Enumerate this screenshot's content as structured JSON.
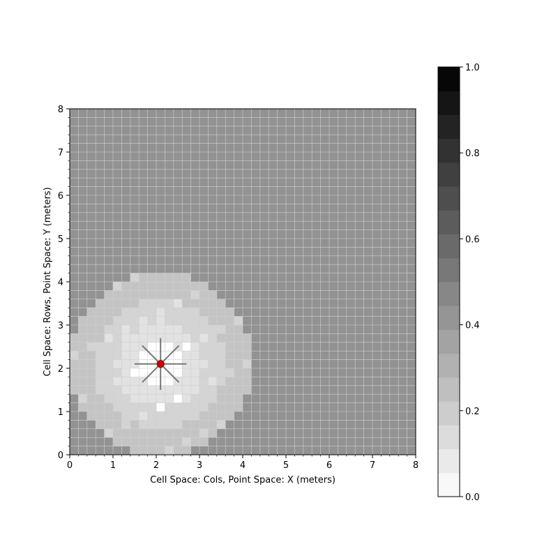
{
  "chart_data": {
    "type": "heatmap",
    "xlabel": "Cell Space: Cols, Point Space: X (meters)",
    "ylabel": "Cell Space: Rows, Point Space: Y (meters)",
    "xlim": [
      0,
      8
    ],
    "ylim": [
      0,
      8
    ],
    "x_ticks": [
      "0",
      "1",
      "2",
      "3",
      "4",
      "5",
      "6",
      "7",
      "8"
    ],
    "y_ticks": [
      "0",
      "1",
      "2",
      "3",
      "4",
      "5",
      "6",
      "7",
      "8"
    ],
    "grid_size": 40,
    "cell_size_m": 0.2,
    "grid": true,
    "colormap": "gray_r",
    "background_value": 0.5,
    "center_point": {
      "x": 2.1,
      "y": 2.1,
      "color": "#cc0000"
    },
    "value_bands": [
      {
        "max_radius_m": 0.55,
        "value": 0.0
      },
      {
        "max_radius_m": 1.0,
        "value": 0.1
      },
      {
        "max_radius_m": 1.5,
        "value": 0.2
      },
      {
        "max_radius_m": 2.1,
        "value": 0.3
      }
    ],
    "rays": {
      "color": "#777777",
      "length_m": 0.6,
      "angles_deg": [
        0,
        45,
        90,
        135,
        180,
        225,
        270,
        315
      ]
    },
    "colorbar": {
      "min": 0.0,
      "max": 1.0,
      "levels": 18,
      "tick_labels": [
        "0.0",
        "0.2",
        "0.4",
        "0.6",
        "0.8",
        "1.0"
      ],
      "tick_values": [
        0.0,
        0.2,
        0.4,
        0.6,
        0.8,
        1.0
      ]
    }
  }
}
